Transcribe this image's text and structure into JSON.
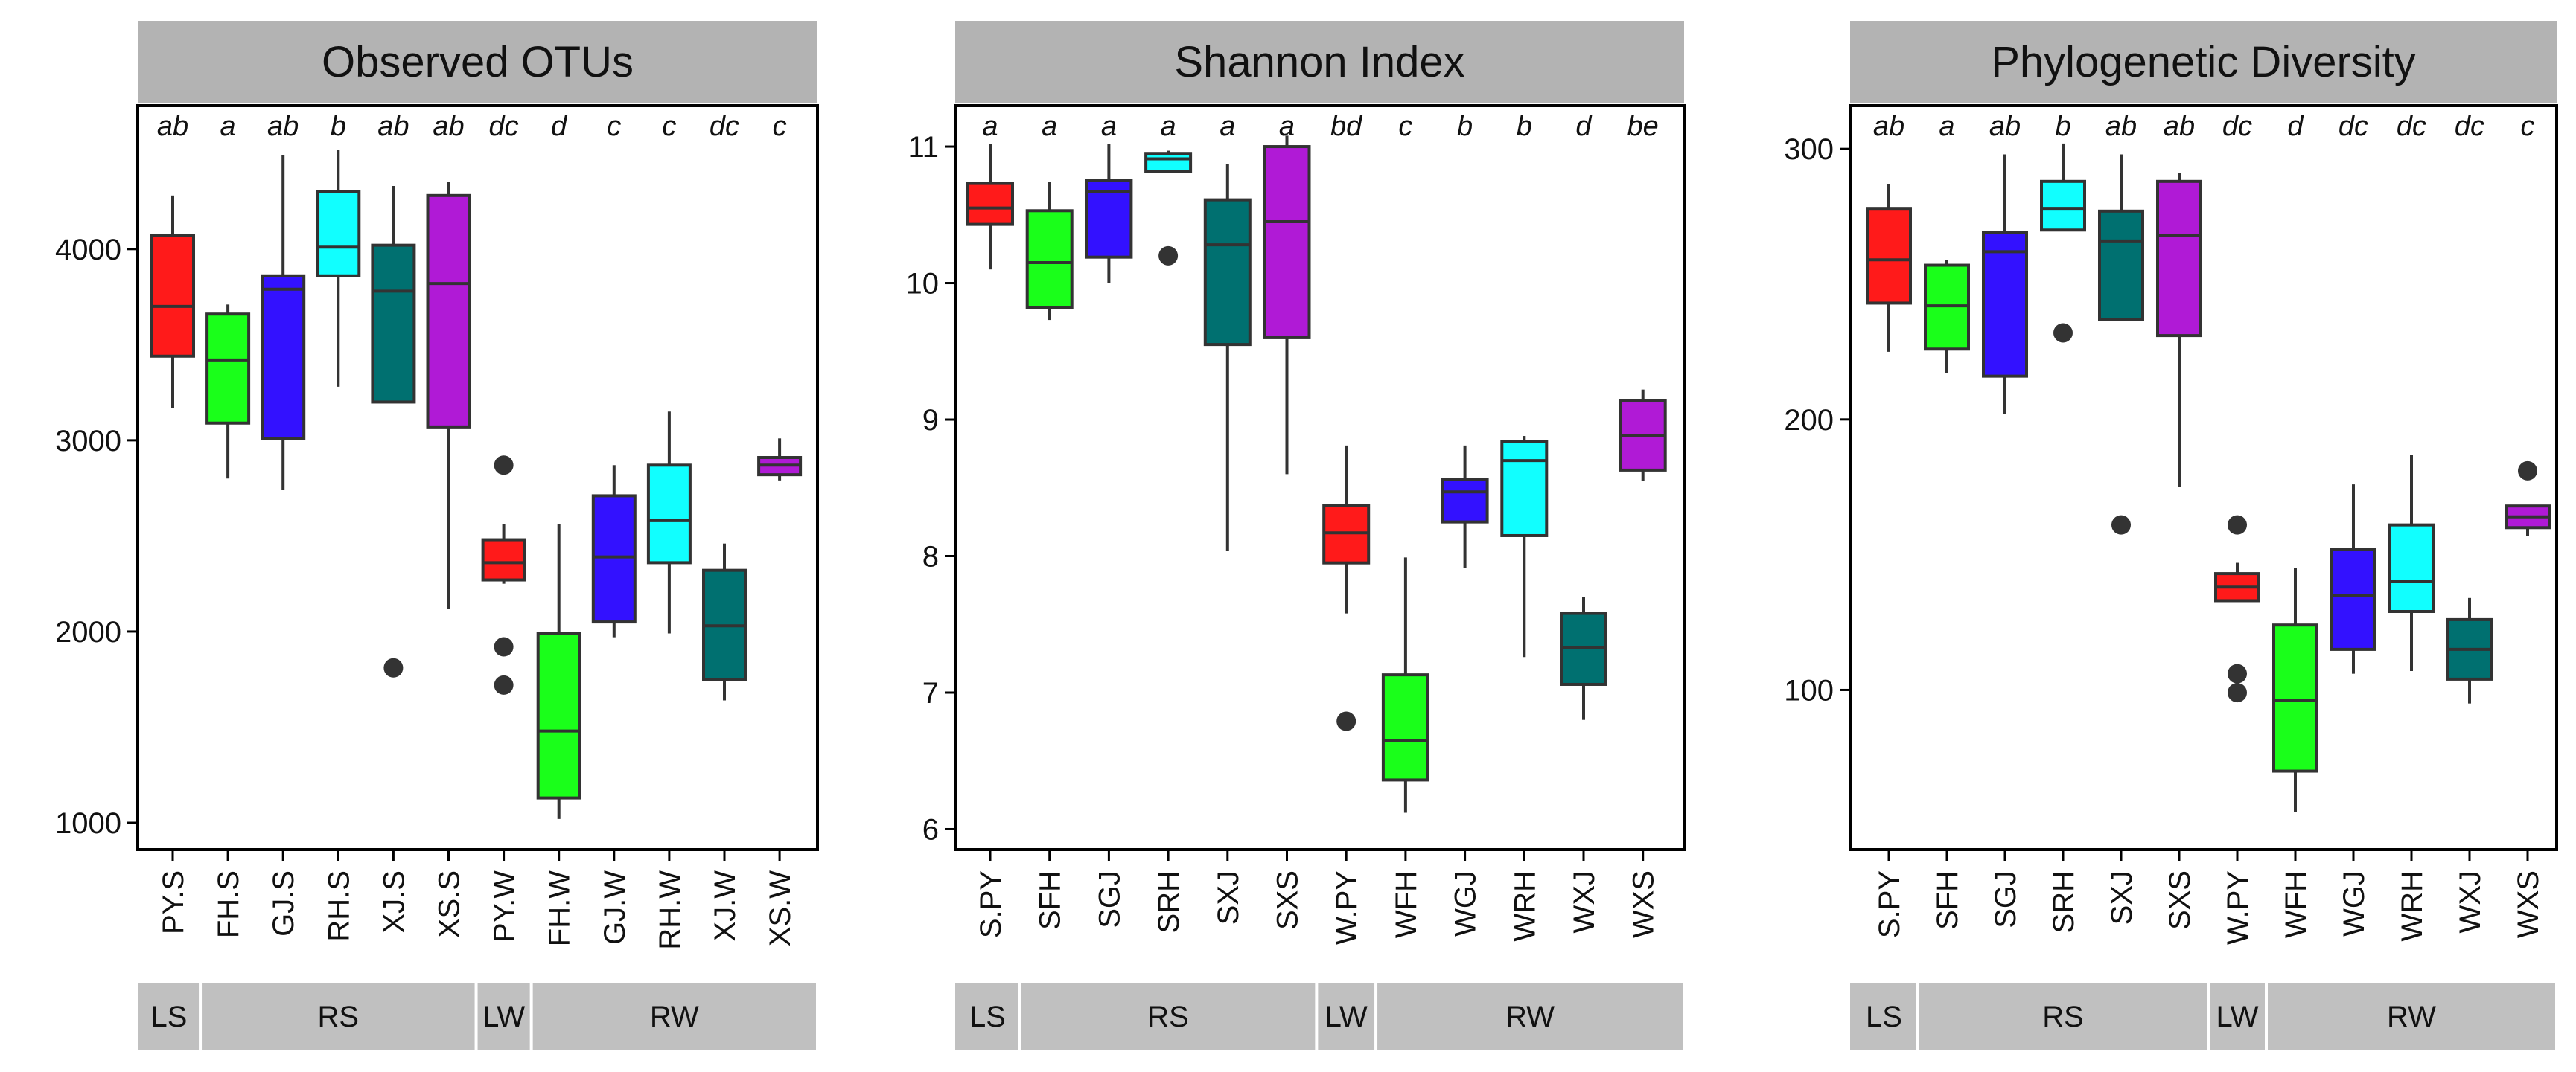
{
  "chart_data": [
    {
      "type": "box",
      "title": "Observed OTUs",
      "categories": [
        "PY.S",
        "FH.S",
        "GJ.S",
        "RH.S",
        "XJ.S",
        "XS.S",
        "PY.W",
        "FH.W",
        "GJ.W",
        "RH.W",
        "XJ.W",
        "XS.W"
      ],
      "colors": [
        "#ff1a1a",
        "#1aff1a",
        "#3311ff",
        "#11ffff",
        "#007070",
        "#b01ad6",
        "#ff1a1a",
        "#1aff1a",
        "#3311ff",
        "#11ffff",
        "#007070",
        "#b01ad6"
      ],
      "ylim": [
        860,
        4750
      ],
      "yticks": [
        1000,
        2000,
        3000,
        4000
      ],
      "boxes": [
        {
          "min": 3170,
          "q1": 3440,
          "median": 3700,
          "q3": 4070,
          "max": 4280,
          "outliers": []
        },
        {
          "min": 2800,
          "q1": 3090,
          "median": 3420,
          "q3": 3660,
          "max": 3710,
          "outliers": []
        },
        {
          "min": 2740,
          "q1": 3010,
          "median": 3790,
          "q3": 3860,
          "max": 4490,
          "outliers": []
        },
        {
          "min": 3280,
          "q1": 3860,
          "median": 4010,
          "q3": 4300,
          "max": 4520,
          "outliers": []
        },
        {
          "min": 3200,
          "q1": 3200,
          "median": 3780,
          "q3": 4020,
          "max": 4330,
          "outliers": [
            1810
          ]
        },
        {
          "min": 2120,
          "q1": 3070,
          "median": 3820,
          "q3": 4280,
          "max": 4350,
          "outliers": []
        },
        {
          "min": 2250,
          "q1": 2270,
          "median": 2360,
          "q3": 2480,
          "max": 2560,
          "outliers": [
            2870,
            1920,
            1720
          ]
        },
        {
          "min": 1020,
          "q1": 1130,
          "median": 1480,
          "q3": 1990,
          "max": 2560,
          "outliers": []
        },
        {
          "min": 1970,
          "q1": 2050,
          "median": 2390,
          "q3": 2710,
          "max": 2870,
          "outliers": []
        },
        {
          "min": 1990,
          "q1": 2360,
          "median": 2580,
          "q3": 2870,
          "max": 3150,
          "outliers": []
        },
        {
          "min": 1640,
          "q1": 1750,
          "median": 2030,
          "q3": 2320,
          "max": 2460,
          "outliers": []
        },
        {
          "min": 2790,
          "q1": 2820,
          "median": 2870,
          "q3": 2910,
          "max": 3010,
          "outliers": []
        }
      ],
      "significance": [
        "ab",
        "a",
        "ab",
        "b",
        "ab",
        "ab",
        "dc",
        "d",
        "c",
        "c",
        "dc",
        "c"
      ],
      "groups": [
        {
          "label": "LS",
          "from": 0,
          "to": 0
        },
        {
          "label": "RS",
          "from": 1,
          "to": 5
        },
        {
          "label": "LW",
          "from": 6,
          "to": 6
        },
        {
          "label": "RW",
          "from": 7,
          "to": 11
        }
      ]
    },
    {
      "type": "box",
      "title": "Shannon Index",
      "categories": [
        "S.PY",
        "SFH",
        "SGJ",
        "SRH",
        "SXJ",
        "SXS",
        "W.PY",
        "WFH",
        "WGJ",
        "WRH",
        "WXJ",
        "WXS"
      ],
      "colors": [
        "#ff1a1a",
        "#1aff1a",
        "#3311ff",
        "#11ffff",
        "#007070",
        "#b01ad6",
        "#ff1a1a",
        "#1aff1a",
        "#3311ff",
        "#11ffff",
        "#007070",
        "#b01ad6"
      ],
      "ylim": [
        5.85,
        11.3
      ],
      "yticks": [
        6,
        7,
        8,
        9,
        10,
        11
      ],
      "boxes": [
        {
          "min": 10.1,
          "q1": 10.43,
          "median": 10.55,
          "q3": 10.73,
          "max": 11.02,
          "outliers": []
        },
        {
          "min": 9.73,
          "q1": 9.82,
          "median": 10.15,
          "q3": 10.53,
          "max": 10.74,
          "outliers": []
        },
        {
          "min": 10.0,
          "q1": 10.19,
          "median": 10.67,
          "q3": 10.75,
          "max": 11.02,
          "outliers": []
        },
        {
          "min": 10.82,
          "q1": 10.82,
          "median": 10.91,
          "q3": 10.95,
          "max": 10.97,
          "outliers": [
            10.2
          ]
        },
        {
          "min": 8.04,
          "q1": 9.55,
          "median": 10.28,
          "q3": 10.61,
          "max": 10.87,
          "outliers": []
        },
        {
          "min": 8.6,
          "q1": 9.6,
          "median": 10.45,
          "q3": 11.0,
          "max": 11.08,
          "outliers": []
        },
        {
          "min": 7.58,
          "q1": 7.95,
          "median": 8.17,
          "q3": 8.37,
          "max": 8.81,
          "outliers": [
            6.79
          ]
        },
        {
          "min": 6.12,
          "q1": 6.36,
          "median": 6.65,
          "q3": 7.13,
          "max": 7.99,
          "outliers": []
        },
        {
          "min": 7.91,
          "q1": 8.25,
          "median": 8.47,
          "q3": 8.56,
          "max": 8.81,
          "outliers": []
        },
        {
          "min": 7.26,
          "q1": 8.15,
          "median": 8.7,
          "q3": 8.84,
          "max": 8.88,
          "outliers": []
        },
        {
          "min": 6.8,
          "q1": 7.06,
          "median": 7.33,
          "q3": 7.58,
          "max": 7.7,
          "outliers": []
        },
        {
          "min": 8.55,
          "q1": 8.63,
          "median": 8.88,
          "q3": 9.14,
          "max": 9.22,
          "outliers": []
        }
      ],
      "significance": [
        "a",
        "a",
        "a",
        "a",
        "a",
        "a",
        "bd",
        "c",
        "b",
        "b",
        "d",
        "be"
      ],
      "groups": [
        {
          "label": "LS",
          "from": 0,
          "to": 0
        },
        {
          "label": "RS",
          "from": 1,
          "to": 5
        },
        {
          "label": "LW",
          "from": 6,
          "to": 6
        },
        {
          "label": "RW",
          "from": 7,
          "to": 11
        }
      ]
    },
    {
      "type": "box",
      "title": "Phylogenetic Diversity",
      "categories": [
        "S.PY",
        "SFH",
        "SGJ",
        "SRH",
        "SXJ",
        "SXS",
        "W.PY",
        "WFH",
        "WGJ",
        "WRH",
        "WXJ",
        "WXS"
      ],
      "colors": [
        "#ff1a1a",
        "#1aff1a",
        "#3311ff",
        "#11ffff",
        "#007070",
        "#b01ad6",
        "#ff1a1a",
        "#1aff1a",
        "#3311ff",
        "#11ffff",
        "#007070",
        "#b01ad6"
      ],
      "ylim": [
        41,
        316
      ],
      "yticks": [
        100,
        200,
        300
      ],
      "boxes": [
        {
          "min": 225,
          "q1": 243,
          "median": 259,
          "q3": 278,
          "max": 287,
          "outliers": []
        },
        {
          "min": 217,
          "q1": 226,
          "median": 242,
          "q3": 257,
          "max": 259,
          "outliers": []
        },
        {
          "min": 202,
          "q1": 216,
          "median": 262,
          "q3": 269,
          "max": 298,
          "outliers": []
        },
        {
          "min": 270,
          "q1": 270,
          "median": 278,
          "q3": 288,
          "max": 302,
          "outliers": [
            232
          ]
        },
        {
          "min": 237,
          "q1": 237,
          "median": 266,
          "q3": 277,
          "max": 298,
          "outliers": [
            161
          ]
        },
        {
          "min": 175,
          "q1": 231,
          "median": 268,
          "q3": 288,
          "max": 291,
          "outliers": []
        },
        {
          "min": 133,
          "q1": 133,
          "median": 138,
          "q3": 143,
          "max": 147,
          "outliers": [
            161,
            106,
            99
          ]
        },
        {
          "min": 55,
          "q1": 70,
          "median": 96,
          "q3": 124,
          "max": 145,
          "outliers": []
        },
        {
          "min": 106,
          "q1": 115,
          "median": 135,
          "q3": 152,
          "max": 176,
          "outliers": []
        },
        {
          "min": 107,
          "q1": 129,
          "median": 140,
          "q3": 161,
          "max": 187,
          "outliers": []
        },
        {
          "min": 95,
          "q1": 104,
          "median": 115,
          "q3": 126,
          "max": 134,
          "outliers": []
        },
        {
          "min": 157,
          "q1": 160,
          "median": 164,
          "q3": 168,
          "max": 168,
          "outliers": [
            181
          ]
        }
      ],
      "significance": [
        "ab",
        "a",
        "ab",
        "b",
        "ab",
        "ab",
        "dc",
        "d",
        "dc",
        "dc",
        "dc",
        "c"
      ],
      "groups": [
        {
          "label": "LS",
          "from": 0,
          "to": 0
        },
        {
          "label": "RS",
          "from": 1,
          "to": 5
        },
        {
          "label": "LW",
          "from": 6,
          "to": 6
        },
        {
          "label": "RW",
          "from": 7,
          "to": 11
        }
      ]
    }
  ]
}
